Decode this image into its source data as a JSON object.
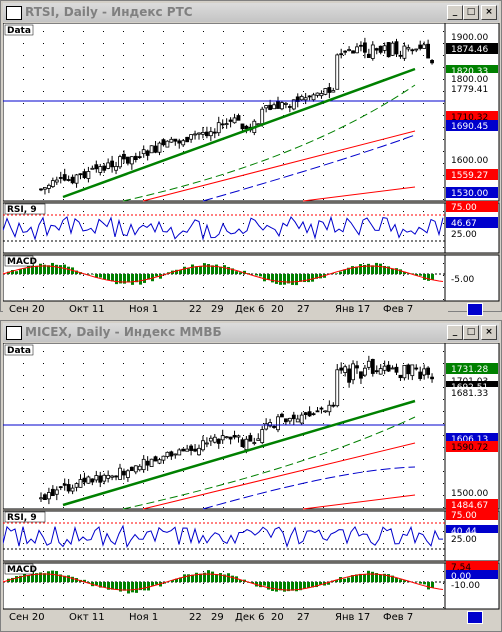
{
  "windows": [
    {
      "title": "RTSI, Daily - Индекс РТС",
      "price_tag": "Data",
      "price_labels": [
        {
          "text": "1900.00",
          "bg": "#ffffff",
          "fg": "#000000"
        },
        {
          "text": "1874.46",
          "bg": "#000000",
          "fg": "#ffffff"
        },
        {
          "text": "1820.33",
          "bg": "#008000",
          "fg": "#ffffff"
        },
        {
          "text": "1800.00",
          "bg": "#ffffff",
          "fg": "#000000"
        },
        {
          "text": "1779.41",
          "bg": "#ffffff",
          "fg": "#000000"
        },
        {
          "text": "1710.32",
          "bg": "#ff0000",
          "fg": "#000000"
        },
        {
          "text": "1690.45",
          "bg": "#0000cc",
          "fg": "#ffffff"
        },
        {
          "text": "1600.00",
          "bg": "#ffffff",
          "fg": "#000000"
        },
        {
          "text": "1559.27",
          "bg": "#ff0000",
          "fg": "#ffffff"
        },
        {
          "text": "1530.00",
          "bg": "#0000cc",
          "fg": "#ffffff"
        }
      ],
      "rsi_tag": "RSI, 9",
      "rsi_labels": [
        {
          "text": "75.00",
          "bg": "#ff0000",
          "fg": "#ffffff"
        },
        {
          "text": "46.67",
          "bg": "#0000cc",
          "fg": "#ffffff"
        },
        {
          "text": "25.00",
          "bg": "#ffffff",
          "fg": "#000000"
        }
      ],
      "macd_tag": "MACD",
      "macd_labels": [
        {
          "text": "-5.00",
          "bg": "#ffffff",
          "fg": "#000000"
        }
      ],
      "x_labels": [
        "Сен 20",
        "Окт 11",
        "Ноя 1",
        "22",
        "29",
        "Дек 6",
        "20",
        "27",
        "Янв 17",
        "Фев 7"
      ]
    },
    {
      "title": "MICEX, Daily - Индекс ММВБ",
      "price_tag": "Data",
      "price_labels": [
        {
          "text": "1731.28",
          "bg": "#008000",
          "fg": "#ffffff"
        },
        {
          "text": "1701.03",
          "bg": "#ffffff",
          "fg": "#000000"
        },
        {
          "text": "1692.51",
          "bg": "#000000",
          "fg": "#ffffff"
        },
        {
          "text": "1681.33",
          "bg": "#ffffff",
          "fg": "#000000"
        },
        {
          "text": "1606.13",
          "bg": "#0000cc",
          "fg": "#ffffff"
        },
        {
          "text": "1590.72",
          "bg": "#ff0000",
          "fg": "#000000"
        },
        {
          "text": "1500.00",
          "bg": "#ffffff",
          "fg": "#000000"
        },
        {
          "text": "1484.67",
          "bg": "#ff0000",
          "fg": "#ffffff"
        }
      ],
      "rsi_tag": "RSI, 9",
      "rsi_labels": [
        {
          "text": "75.00",
          "bg": "#ff0000",
          "fg": "#ffffff"
        },
        {
          "text": "40.44",
          "bg": "#0000cc",
          "fg": "#ffffff"
        },
        {
          "text": "25.00",
          "bg": "#ffffff",
          "fg": "#000000"
        }
      ],
      "macd_tag": "MACD",
      "macd_labels": [
        {
          "text": "7.54",
          "bg": "#ff0000",
          "fg": "#000000"
        },
        {
          "text": "0.00",
          "bg": "#0000cc",
          "fg": "#ffffff"
        },
        {
          "text": "-10.00",
          "bg": "#ffffff",
          "fg": "#000000"
        }
      ],
      "x_labels": [
        "Сен 20",
        "Окт 11",
        "Ноя 1",
        "22",
        "29",
        "Дек 6",
        "20",
        "27",
        "Янв 17",
        "Фев 7"
      ]
    }
  ],
  "window_buttons": {
    "minimize": "_",
    "maximize": "□",
    "close": "×"
  }
}
